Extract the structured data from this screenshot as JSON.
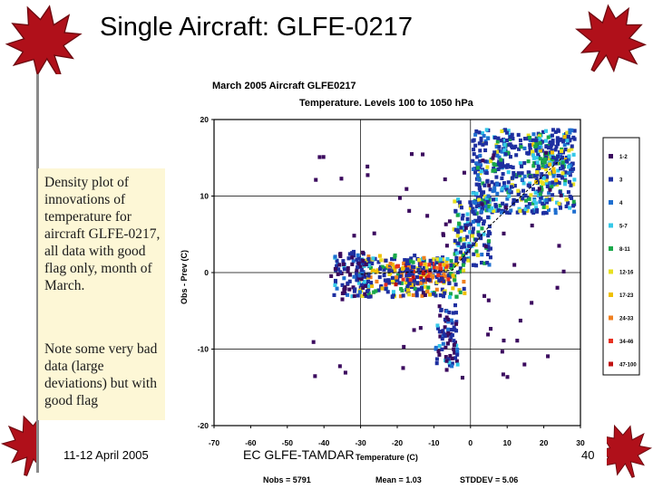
{
  "slide": {
    "title": "Single Aircraft: GLFE-0217",
    "note_paragraph_1": "Density plot of innovations of temperature for aircraft GLFE-0217, all data with good flag only, month of March.",
    "note_paragraph_2": "Note some very bad data (large deviations) but with good flag",
    "footer_date": "11-12 April 2005",
    "footer_center": "EC GLFE-TAMDAR",
    "page_number": "40"
  },
  "colors": {
    "leaf_red": "#b0101a",
    "leaf_dark": "#6e0a10",
    "note_background": "#fdf7d6",
    "frame_border": "#8a8a8a"
  },
  "chart_data": {
    "type": "heatmap",
    "title_line_1": "March 2005  Aircraft GLFE0217",
    "title_line_2": "Temperature. Levels 100 to 1050 hPa",
    "xlabel": "Temperature (C)",
    "ylabel": "Obs - Prev (C)",
    "xlim": [
      -70,
      30
    ],
    "ylim": [
      -20,
      20
    ],
    "xticks": [
      -70,
      -60,
      -50,
      -40,
      -30,
      -20,
      -10,
      0,
      10,
      20,
      30
    ],
    "yticks": [
      -20,
      -10,
      0,
      10,
      20
    ],
    "grid_lines_x": [
      -30,
      0
    ],
    "grid_lines_y": [
      -10,
      0,
      10
    ],
    "legend": [
      {
        "label": "1-2",
        "color": "#3b0a5e"
      },
      {
        "label": "3",
        "color": "#1e2fa0"
      },
      {
        "label": "4",
        "color": "#1f6fd0"
      },
      {
        "label": "5-7",
        "color": "#35c8e8"
      },
      {
        "label": "8-11",
        "color": "#1aa84a"
      },
      {
        "label": "12-16",
        "color": "#e8e020"
      },
      {
        "label": "17-23",
        "color": "#f0c000"
      },
      {
        "label": "24-33",
        "color": "#f08020"
      },
      {
        "label": "34-46",
        "color": "#e83020"
      },
      {
        "label": "47-100",
        "color": "#c01010"
      }
    ],
    "stats": {
      "nobs": "Nobs = 5791",
      "mean": "Mean = 1.03",
      "stddev": "STDDEV = 5.06"
    },
    "density_clusters": [
      {
        "temp_from": -32,
        "temp_to": -2,
        "dev_from": -3,
        "dev_to": 2.5,
        "level": 5
      },
      {
        "temp_from": -24,
        "temp_to": -6,
        "dev_from": -1.5,
        "dev_to": 1.5,
        "level": 7
      },
      {
        "temp_from": -18,
        "temp_to": -8,
        "dev_from": -0.8,
        "dev_to": 0.8,
        "level": 9
      },
      {
        "temp_from": -5,
        "temp_to": 5,
        "dev_from": 1,
        "dev_to": 10,
        "level": 3
      },
      {
        "temp_from": 0,
        "temp_to": 28,
        "dev_from": 8,
        "dev_to": 19,
        "level": 3
      },
      {
        "temp_from": 15,
        "temp_to": 27,
        "dev_from": 12,
        "dev_to": 18,
        "level": 4
      },
      {
        "temp_from": -38,
        "temp_to": -28,
        "dev_from": -3,
        "dev_to": 3,
        "level": 1
      },
      {
        "temp_from": -10,
        "temp_to": -4,
        "dev_from": -12,
        "dev_to": -4,
        "level": 1
      }
    ]
  }
}
